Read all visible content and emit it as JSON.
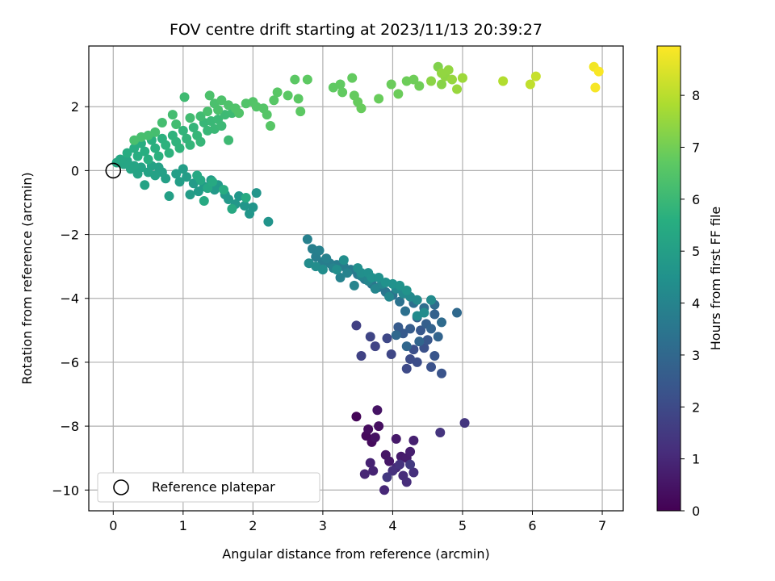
{
  "chart_data": {
    "type": "scatter",
    "title": "FOV centre drift starting at 2023/11/13 20:39:27",
    "xlabel": "Angular distance from reference (arcmin)",
    "ylabel": "Rotation from reference (arcmin)",
    "xlim": [
      -0.35,
      7.3
    ],
    "ylim": [
      -10.65,
      3.9
    ],
    "xticks": [
      0,
      1,
      2,
      3,
      4,
      5,
      6,
      7
    ],
    "yticks": [
      -10,
      -8,
      -6,
      -4,
      -2,
      0,
      2
    ],
    "grid": true,
    "colormap": "viridis",
    "colorbar": {
      "label": "Hours from first FF file",
      "range": [
        0,
        8.95
      ],
      "ticks": [
        0,
        1,
        2,
        3,
        4,
        5,
        6,
        7,
        8
      ]
    },
    "legend": {
      "position": "lower-left",
      "entries": [
        "Reference platepar"
      ]
    },
    "reference_point": {
      "x": 0,
      "y": 0
    },
    "points": [
      [
        3.48,
        -7.7,
        0.1
      ],
      [
        3.62,
        -8.3,
        0.2
      ],
      [
        3.7,
        -8.5,
        0.25
      ],
      [
        3.65,
        -8.1,
        0.3
      ],
      [
        3.8,
        -8.0,
        0.35
      ],
      [
        3.75,
        -8.35,
        0.4
      ],
      [
        3.78,
        -7.5,
        0.45
      ],
      [
        3.9,
        -8.9,
        0.5
      ],
      [
        3.95,
        -9.1,
        0.55
      ],
      [
        4.05,
        -8.4,
        0.6
      ],
      [
        4.12,
        -8.95,
        0.65
      ],
      [
        4.2,
        -9.0,
        0.7
      ],
      [
        4.25,
        -8.8,
        0.75
      ],
      [
        4.3,
        -8.45,
        0.8
      ],
      [
        3.68,
        -9.15,
        0.85
      ],
      [
        3.72,
        -9.4,
        0.9
      ],
      [
        3.6,
        -9.5,
        0.95
      ],
      [
        3.88,
        -10.0,
        1.0
      ],
      [
        4.05,
        -9.3,
        1.05
      ],
      [
        4.15,
        -9.55,
        1.1
      ],
      [
        4.2,
        -9.75,
        1.15
      ],
      [
        4.3,
        -9.45,
        1.2
      ],
      [
        4.0,
        -9.4,
        1.25
      ],
      [
        4.1,
        -9.2,
        1.3
      ],
      [
        4.68,
        -8.2,
        1.35
      ],
      [
        5.03,
        -7.9,
        1.4
      ],
      [
        3.92,
        -9.6,
        1.45
      ],
      [
        4.25,
        -9.2,
        1.5
      ],
      [
        3.48,
        -4.85,
        1.7
      ],
      [
        3.55,
        -5.8,
        1.75
      ],
      [
        3.75,
        -5.5,
        1.8
      ],
      [
        3.68,
        -5.2,
        1.85
      ],
      [
        3.98,
        -5.75,
        1.9
      ],
      [
        3.92,
        -5.25,
        1.95
      ],
      [
        4.2,
        -6.2,
        2.0
      ],
      [
        4.25,
        -5.9,
        2.05
      ],
      [
        4.35,
        -6.0,
        2.1
      ],
      [
        4.3,
        -5.6,
        2.15
      ],
      [
        4.45,
        -5.55,
        2.2
      ],
      [
        4.55,
        -6.15,
        2.25
      ],
      [
        4.7,
        -6.35,
        2.3
      ],
      [
        4.6,
        -5.8,
        2.35
      ],
      [
        4.5,
        -5.3,
        2.4
      ],
      [
        4.4,
        -5.0,
        2.45
      ],
      [
        4.15,
        -5.1,
        2.5
      ],
      [
        4.08,
        -4.9,
        2.55
      ],
      [
        4.25,
        -4.95,
        2.6
      ],
      [
        4.35,
        -4.6,
        2.65
      ],
      [
        4.48,
        -4.8,
        2.7
      ],
      [
        4.6,
        -4.5,
        2.75
      ],
      [
        4.55,
        -4.95,
        2.8
      ],
      [
        4.65,
        -5.2,
        2.85
      ],
      [
        4.38,
        -5.35,
        2.9
      ],
      [
        4.2,
        -5.5,
        2.95
      ],
      [
        4.05,
        -5.15,
        3.0
      ],
      [
        4.92,
        -4.45,
        3.05
      ],
      [
        4.7,
        -4.75,
        3.1
      ],
      [
        4.6,
        -4.2,
        3.15
      ],
      [
        4.45,
        -4.3,
        3.2
      ],
      [
        4.3,
        -4.15,
        3.25
      ],
      [
        4.18,
        -4.4,
        3.3
      ],
      [
        4.1,
        -4.1,
        3.35
      ],
      [
        4.0,
        -3.9,
        3.4
      ],
      [
        3.9,
        -3.8,
        3.45
      ],
      [
        3.8,
        -3.65,
        3.5
      ],
      [
        3.7,
        -3.55,
        3.55
      ],
      [
        3.6,
        -3.4,
        3.6
      ],
      [
        3.5,
        -3.25,
        3.62
      ],
      [
        3.4,
        -3.1,
        3.65
      ],
      [
        3.3,
        -3.0,
        3.7
      ],
      [
        3.2,
        -2.95,
        3.72
      ],
      [
        3.1,
        -2.9,
        3.75
      ],
      [
        3.0,
        -2.85,
        3.77
      ],
      [
        2.9,
        -2.7,
        3.8
      ],
      [
        2.85,
        -2.45,
        3.82
      ],
      [
        2.78,
        -2.15,
        3.85
      ],
      [
        2.95,
        -2.5,
        3.87
      ],
      [
        3.05,
        -2.75,
        3.9
      ],
      [
        3.15,
        -3.05,
        3.92
      ],
      [
        3.25,
        -3.35,
        3.95
      ],
      [
        3.35,
        -3.2,
        3.97
      ],
      [
        3.45,
        -3.6,
        4.0
      ],
      [
        3.55,
        -3.3,
        4.02
      ],
      [
        3.65,
        -3.45,
        4.05
      ],
      [
        3.75,
        -3.7,
        4.07
      ],
      [
        3.85,
        -3.55,
        4.1
      ],
      [
        3.95,
        -3.95,
        4.12
      ],
      [
        4.05,
        -3.7,
        4.15
      ],
      [
        4.15,
        -3.85,
        4.17
      ],
      [
        4.25,
        -3.95,
        4.2
      ],
      [
        4.35,
        -4.05,
        4.22
      ],
      [
        4.55,
        -4.05,
        4.25
      ],
      [
        4.35,
        -4.55,
        4.27
      ],
      [
        4.45,
        -4.45,
        4.3
      ],
      [
        2.8,
        -2.9,
        4.3
      ],
      [
        2.9,
        -3.0,
        4.32
      ],
      [
        3.0,
        -3.1,
        4.34
      ],
      [
        3.2,
        -3.1,
        4.36
      ],
      [
        3.3,
        -2.8,
        4.38
      ],
      [
        3.5,
        -3.05,
        4.4
      ],
      [
        3.55,
        -3.2,
        4.42
      ],
      [
        3.65,
        -3.2,
        4.44
      ],
      [
        3.7,
        -3.35,
        4.46
      ],
      [
        3.8,
        -3.35,
        4.48
      ],
      [
        3.9,
        -3.5,
        4.5
      ],
      [
        4.0,
        -3.55,
        4.52
      ],
      [
        4.1,
        -3.6,
        4.54
      ],
      [
        4.2,
        -3.75,
        4.56
      ],
      [
        2.22,
        -1.6,
        4.6
      ],
      [
        2.05,
        -0.7,
        4.62
      ],
      [
        2.0,
        -1.15,
        4.64
      ],
      [
        1.95,
        -1.35,
        4.66
      ],
      [
        1.88,
        -1.1,
        4.68
      ],
      [
        1.8,
        -0.8,
        4.7
      ],
      [
        1.75,
        -1.05,
        4.72
      ],
      [
        1.65,
        -0.9,
        4.74
      ],
      [
        1.6,
        -0.75,
        4.76
      ],
      [
        1.5,
        -0.45,
        4.78
      ],
      [
        1.45,
        -0.6,
        4.8
      ],
      [
        1.4,
        -0.3,
        4.82
      ],
      [
        1.3,
        -0.5,
        4.84
      ],
      [
        1.22,
        -0.65,
        4.86
      ],
      [
        1.15,
        -0.4,
        4.88
      ],
      [
        1.1,
        -0.75,
        4.9
      ],
      [
        1.05,
        -0.2,
        4.92
      ],
      [
        1.0,
        0.05,
        4.94
      ],
      [
        0.95,
        -0.35,
        4.96
      ],
      [
        0.9,
        -0.1,
        4.98
      ],
      [
        0.8,
        -0.8,
        5.0
      ],
      [
        0.75,
        -0.25,
        5.02
      ],
      [
        0.7,
        -0.05,
        5.04
      ],
      [
        0.65,
        0.1,
        5.06
      ],
      [
        0.6,
        -0.15,
        5.08
      ],
      [
        0.55,
        0.15,
        5.1
      ],
      [
        0.5,
        -0.05,
        5.12
      ],
      [
        0.45,
        -0.45,
        5.14
      ],
      [
        0.4,
        0.1,
        5.16
      ],
      [
        0.35,
        -0.1,
        5.18
      ],
      [
        0.3,
        0.15,
        5.2
      ],
      [
        0.25,
        0.05,
        5.22
      ],
      [
        0.2,
        0.3,
        5.24
      ],
      [
        0.15,
        0.2,
        5.26
      ],
      [
        0.1,
        0.35,
        5.28
      ],
      [
        0.05,
        0.25,
        5.3
      ],
      [
        1.35,
        -0.55,
        5.32
      ],
      [
        1.25,
        -0.3,
        5.34
      ],
      [
        1.2,
        -0.15,
        5.36
      ],
      [
        1.7,
        -1.2,
        5.38
      ],
      [
        1.3,
        -0.95,
        5.4
      ],
      [
        1.42,
        -0.35,
        5.42
      ],
      [
        1.9,
        -0.85,
        5.44
      ],
      [
        1.58,
        -0.6,
        5.46
      ],
      [
        0.2,
        0.55,
        5.5
      ],
      [
        0.3,
        0.7,
        5.52
      ],
      [
        0.35,
        0.45,
        5.54
      ],
      [
        0.4,
        0.85,
        5.56
      ],
      [
        0.45,
        0.6,
        5.58
      ],
      [
        0.5,
        0.35,
        5.6
      ],
      [
        0.55,
        0.95,
        5.62
      ],
      [
        0.6,
        0.7,
        5.64
      ],
      [
        0.65,
        0.45,
        5.66
      ],
      [
        0.7,
        1.0,
        5.68
      ],
      [
        0.75,
        0.8,
        5.7
      ],
      [
        0.8,
        0.55,
        5.72
      ],
      [
        0.85,
        1.1,
        5.74
      ],
      [
        0.9,
        0.9,
        5.76
      ],
      [
        0.95,
        0.7,
        5.78
      ],
      [
        1.0,
        1.25,
        5.8
      ],
      [
        1.05,
        1.0,
        5.82
      ],
      [
        1.1,
        0.8,
        5.84
      ],
      [
        1.15,
        1.35,
        5.86
      ],
      [
        1.2,
        1.1,
        5.88
      ],
      [
        1.25,
        0.9,
        5.9
      ],
      [
        1.3,
        1.5,
        5.92
      ],
      [
        1.35,
        1.25,
        5.94
      ],
      [
        1.4,
        1.55,
        5.96
      ],
      [
        1.45,
        1.3,
        5.98
      ],
      [
        1.5,
        1.6,
        6.0
      ],
      [
        1.55,
        1.4,
        6.02
      ],
      [
        1.6,
        1.75,
        6.04
      ],
      [
        1.65,
        0.95,
        6.06
      ],
      [
        1.7,
        1.8,
        6.08
      ],
      [
        1.02,
        2.3,
        6.1
      ],
      [
        1.25,
        1.7,
        6.12
      ],
      [
        1.1,
        1.65,
        6.14
      ],
      [
        0.9,
        1.45,
        6.16
      ],
      [
        0.85,
        1.75,
        6.18
      ],
      [
        0.7,
        1.5,
        6.2
      ],
      [
        0.6,
        1.2,
        6.22
      ],
      [
        0.5,
        1.1,
        6.24
      ],
      [
        0.4,
        1.05,
        6.26
      ],
      [
        0.3,
        0.95,
        6.28
      ],
      [
        1.35,
        1.85,
        6.3
      ],
      [
        1.45,
        2.1,
        6.32
      ],
      [
        1.5,
        1.9,
        6.34
      ],
      [
        1.38,
        2.35,
        6.36
      ],
      [
        1.55,
        2.2,
        6.38
      ],
      [
        1.65,
        2.05,
        6.4
      ],
      [
        1.75,
        1.95,
        6.42
      ],
      [
        1.8,
        1.8,
        6.44
      ],
      [
        1.9,
        2.1,
        6.46
      ],
      [
        2.0,
        2.15,
        6.48
      ],
      [
        2.05,
        2.0,
        6.5
      ],
      [
        2.15,
        1.95,
        6.52
      ],
      [
        2.2,
        1.75,
        6.54
      ],
      [
        2.25,
        1.4,
        6.56
      ],
      [
        2.3,
        2.2,
        6.58
      ],
      [
        2.35,
        2.45,
        6.6
      ],
      [
        2.5,
        2.35,
        6.62
      ],
      [
        2.6,
        2.85,
        6.64
      ],
      [
        2.65,
        2.25,
        6.66
      ],
      [
        2.68,
        1.85,
        6.68
      ],
      [
        2.78,
        2.85,
        6.7
      ],
      [
        3.15,
        2.6,
        6.72
      ],
      [
        3.25,
        2.7,
        6.74
      ],
      [
        3.28,
        2.45,
        6.76
      ],
      [
        3.42,
        2.9,
        6.78
      ],
      [
        3.45,
        2.35,
        6.8
      ],
      [
        3.5,
        2.15,
        6.82
      ],
      [
        3.55,
        1.95,
        6.84
      ],
      [
        3.8,
        2.25,
        6.86
      ],
      [
        3.98,
        2.7,
        6.88
      ],
      [
        4.08,
        2.4,
        6.9
      ],
      [
        4.2,
        2.8,
        6.92
      ],
      [
        4.3,
        2.85,
        6.94
      ],
      [
        4.38,
        2.65,
        6.96
      ],
      [
        4.65,
        3.25,
        7.2
      ],
      [
        4.7,
        2.7,
        7.3
      ],
      [
        4.75,
        2.95,
        7.4
      ],
      [
        4.8,
        3.15,
        7.45
      ],
      [
        4.85,
        2.85,
        7.5
      ],
      [
        4.92,
        2.55,
        7.55
      ],
      [
        5.0,
        2.9,
        7.6
      ],
      [
        4.55,
        2.8,
        7.35
      ],
      [
        4.7,
        3.05,
        7.45
      ],
      [
        5.58,
        2.8,
        7.9
      ],
      [
        5.97,
        2.7,
        8.1
      ],
      [
        6.05,
        2.95,
        8.2
      ],
      [
        6.88,
        3.25,
        8.8
      ],
      [
        6.95,
        3.1,
        8.9
      ],
      [
        6.9,
        2.6,
        8.85
      ]
    ]
  }
}
